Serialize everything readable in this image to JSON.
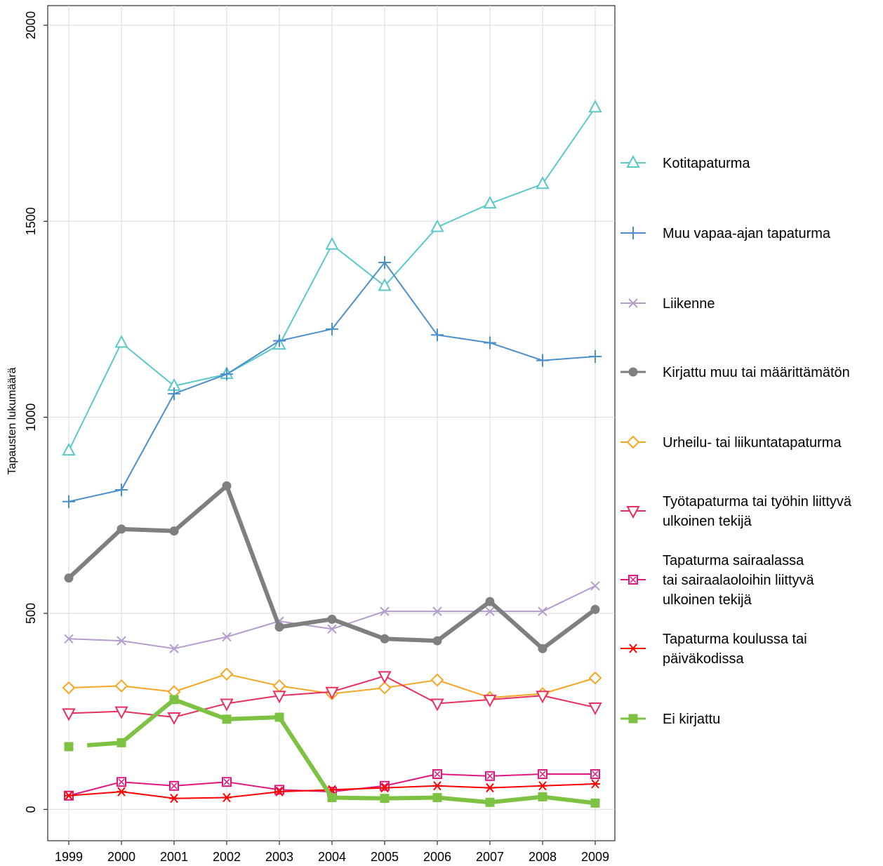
{
  "chart_data": {
    "type": "line",
    "ylabel": "Tapausten lukumäärä",
    "xlabel": "",
    "ylim": [
      -80,
      2050
    ],
    "yticks": [
      0,
      500,
      1000,
      1500,
      2000
    ],
    "grid": true,
    "legend_position": "right",
    "x": [
      1999,
      2000,
      2001,
      2002,
      2003,
      2004,
      2005,
      2006,
      2007,
      2008,
      2009
    ],
    "series": [
      {
        "name": "Kotitapaturma",
        "marker": "triangle-up",
        "color": "#5bc8c8",
        "line_width": 2,
        "values": [
          915,
          1190,
          1080,
          1110,
          1185,
          1440,
          1335,
          1485,
          1545,
          1595,
          1790
        ]
      },
      {
        "name": "Muu vapaa-ajan tapaturma",
        "marker": "plus",
        "color": "#4a8fcc",
        "line_width": 2,
        "values": [
          785,
          815,
          1060,
          1110,
          1195,
          1225,
          1395,
          1210,
          1190,
          1145,
          1155
        ]
      },
      {
        "name": "Liikenne",
        "marker": "x",
        "color": "#b49ccc",
        "line_width": 2,
        "values": [
          435,
          430,
          410,
          440,
          480,
          460,
          505,
          505,
          505,
          505,
          570
        ]
      },
      {
        "name": "Kirjattu muu tai määrittämätön",
        "marker": "circle",
        "color": "#7f7f7f",
        "line_width": 6,
        "values": [
          590,
          715,
          710,
          825,
          465,
          485,
          435,
          430,
          530,
          410,
          510
        ]
      },
      {
        "name": "Urheilu- tai liikuntatapaturma",
        "marker": "diamond",
        "color": "#f5a623",
        "line_width": 2,
        "values": [
          310,
          315,
          300,
          345,
          315,
          295,
          310,
          330,
          285,
          295,
          335
        ]
      },
      {
        "name": [
          "Työtapaturma tai työhin liittyvä",
          "ulkoinen tekijä"
        ],
        "marker": "triangle-down",
        "color": "#e8305e",
        "line_width": 2,
        "values": [
          245,
          250,
          235,
          270,
          290,
          300,
          340,
          270,
          280,
          290,
          260
        ]
      },
      {
        "name": [
          "Tapaturma sairaalassa",
          "tai sairaalaoloihin liittyvä",
          "ulkoinen tekijä"
        ],
        "marker": "square-x",
        "color": "#e0187e",
        "line_width": 2,
        "values": [
          35,
          70,
          60,
          70,
          50,
          45,
          60,
          90,
          85,
          90,
          90
        ]
      },
      {
        "name": [
          "Tapaturma koulussa tai",
          "päiväkodissa"
        ],
        "marker": "asterisk",
        "color": "#ff0000",
        "line_width": 2,
        "values": [
          35,
          45,
          28,
          30,
          45,
          50,
          55,
          60,
          55,
          60,
          65
        ]
      },
      {
        "name": "Ei kirjattu",
        "marker": "square",
        "color": "#7dc242",
        "line_width": 6,
        "values": [
          160,
          170,
          280,
          230,
          235,
          30,
          28,
          30,
          18,
          32,
          16
        ],
        "gap_after_first": true
      }
    ]
  }
}
